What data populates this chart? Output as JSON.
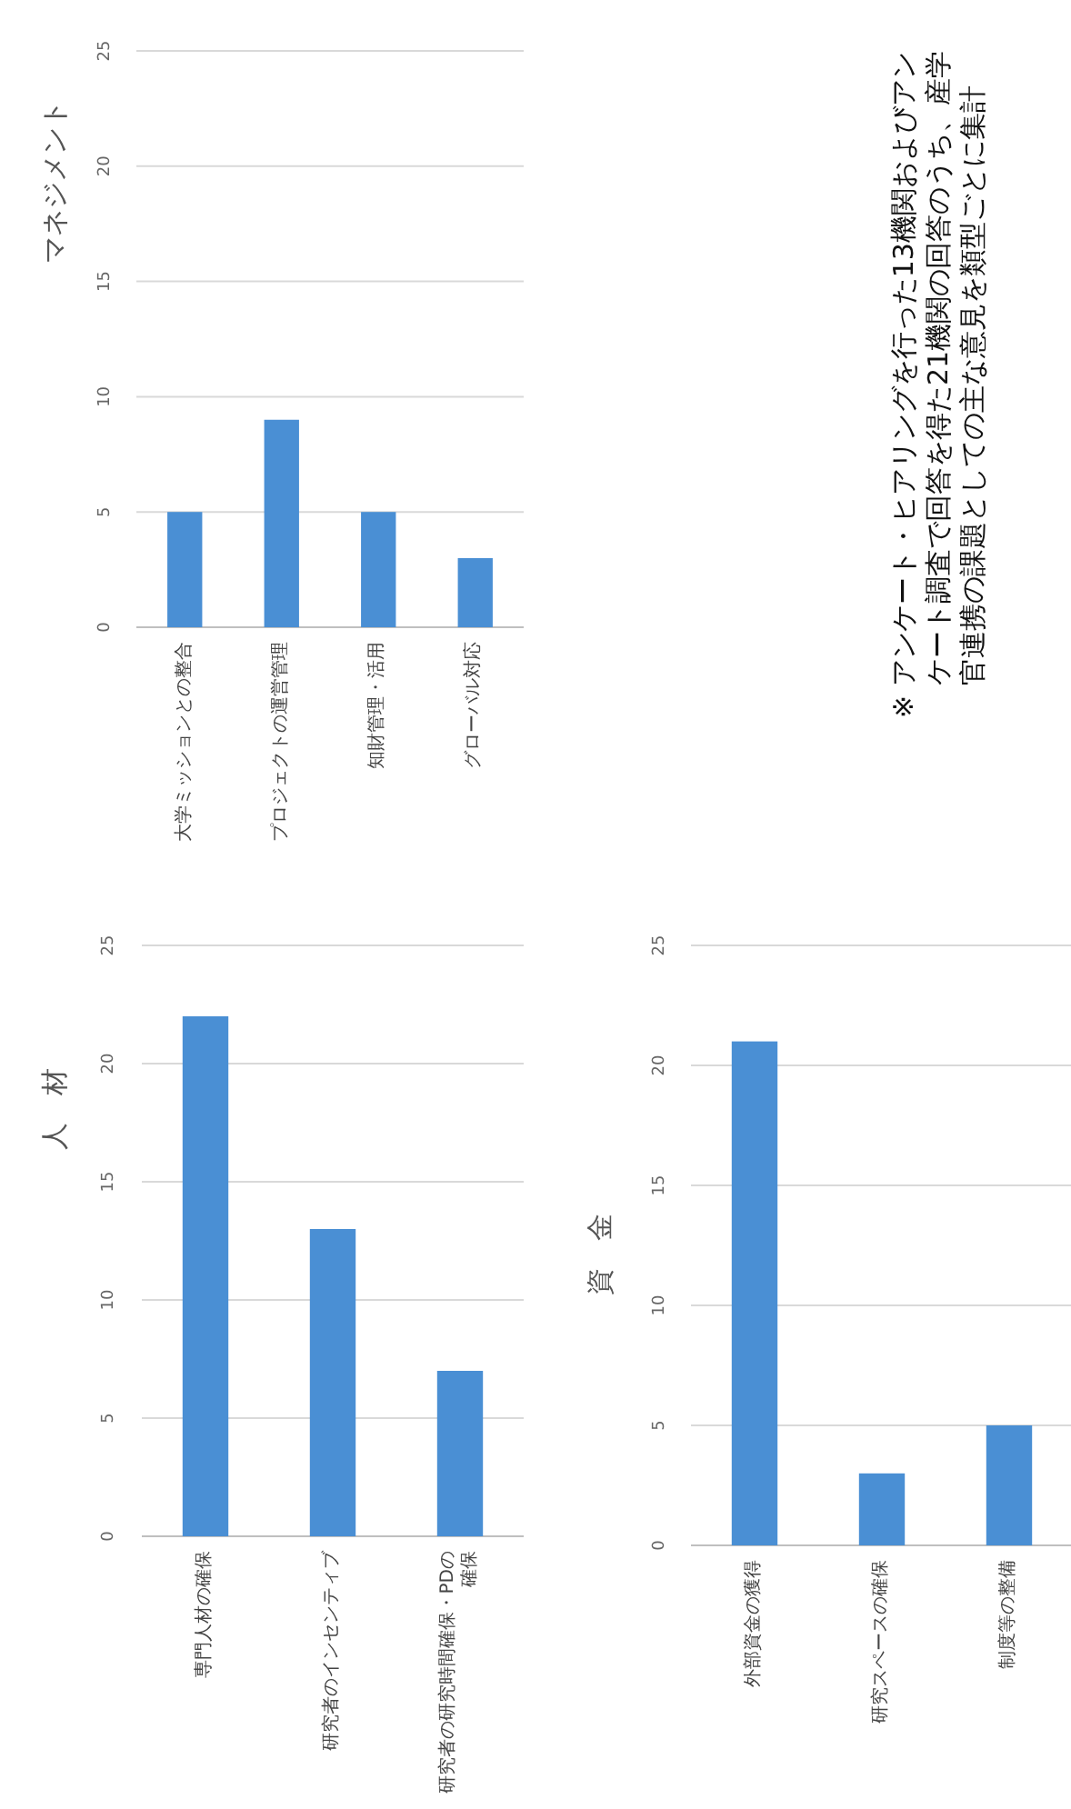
{
  "chart_data": [
    {
      "type": "bar",
      "title": "人　材",
      "categories": [
        "専門人材の確保",
        "研究者のインセンティブ",
        "研究者の研究時間確保・PDの確保"
      ],
      "values": [
        22,
        13,
        7
      ],
      "color": "#4a8fd4",
      "ylim": [
        0,
        25
      ],
      "yticks": [
        0,
        5,
        10,
        15,
        20,
        25
      ],
      "grid": "y"
    },
    {
      "type": "bar",
      "title": "マネジメント",
      "categories": [
        "大学ミッションとの整合",
        "プロジェクトの運営管理",
        "知財管理・活用",
        "グローバル対応"
      ],
      "values": [
        5,
        9,
        5,
        3
      ],
      "color": "#4a8fd4",
      "ylim": [
        0,
        25
      ],
      "yticks": [
        0,
        5,
        10,
        15,
        20,
        25
      ],
      "grid": "y"
    },
    {
      "type": "bar",
      "title": "資　金",
      "categories": [
        "外部資金の獲得",
        "研究スペースの確保",
        "制度等の整備"
      ],
      "values": [
        21,
        3,
        5
      ],
      "color": "#4a8fd4",
      "ylim": [
        0,
        25
      ],
      "yticks": [
        0,
        5,
        10,
        15,
        20,
        25
      ],
      "grid": "y"
    },
    {
      "type": "other",
      "annotations": [
        "※ アンケート・ヒアリングを行った13機関およびアンケート調査で回答を得た21機関の回答のうち、産学官連携の課題としての主な意見を類型ごとに集計"
      ]
    }
  ]
}
